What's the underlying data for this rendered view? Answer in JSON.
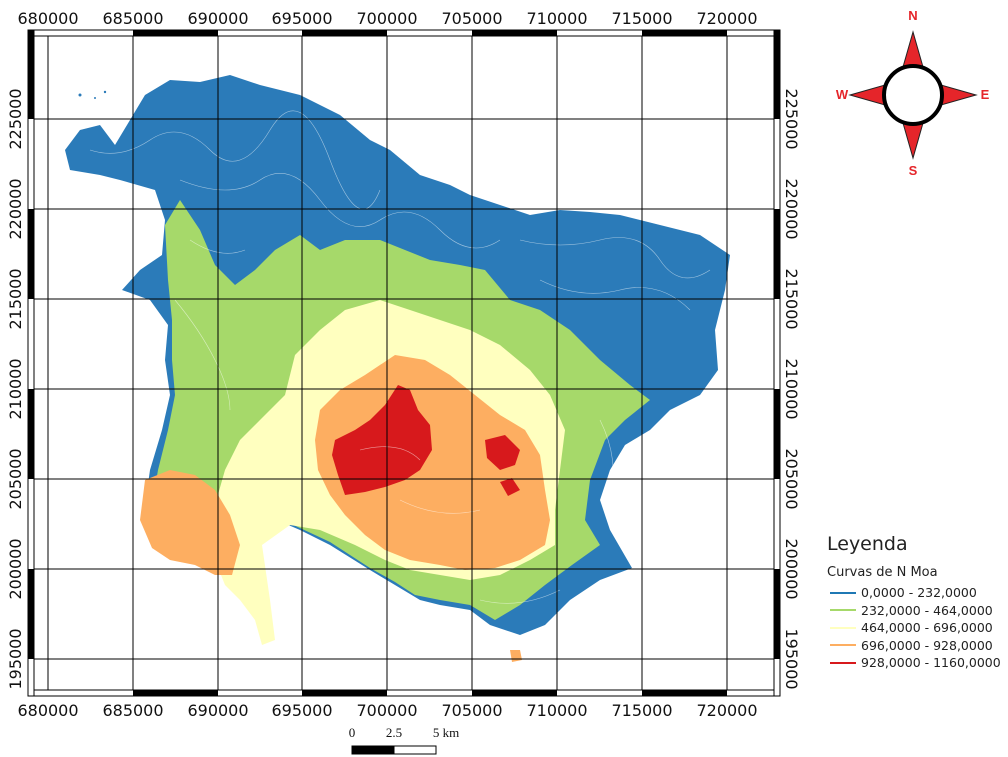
{
  "map": {
    "x_ticks": [
      "680000",
      "685000",
      "690000",
      "695000",
      "700000",
      "705000",
      "710000",
      "715000",
      "720000"
    ],
    "y_ticks": [
      "225000",
      "220000",
      "215000",
      "210000",
      "205000",
      "200000",
      "195000"
    ]
  },
  "compass": {
    "n": "N",
    "s": "S",
    "e": "E",
    "w": "W",
    "icon": "north-arrow-compass-icon"
  },
  "scale_bar": {
    "labels": [
      "0",
      "2.5",
      "5 km"
    ]
  },
  "legend": {
    "title": "Leyenda",
    "layer": "Curvas de N Moa",
    "classes": [
      {
        "label": "0,0000 - 232,0000",
        "color": "#1f78b4"
      },
      {
        "label": "232,0000 - 464,0000",
        "color": "#a6d96a"
      },
      {
        "label": "464,0000 - 696,0000",
        "color": "#ffffbf"
      },
      {
        "label": "696,0000 - 928,0000",
        "color": "#fdae61"
      },
      {
        "label": "928,0000 - 1160,0000",
        "color": "#d7191c"
      }
    ]
  }
}
